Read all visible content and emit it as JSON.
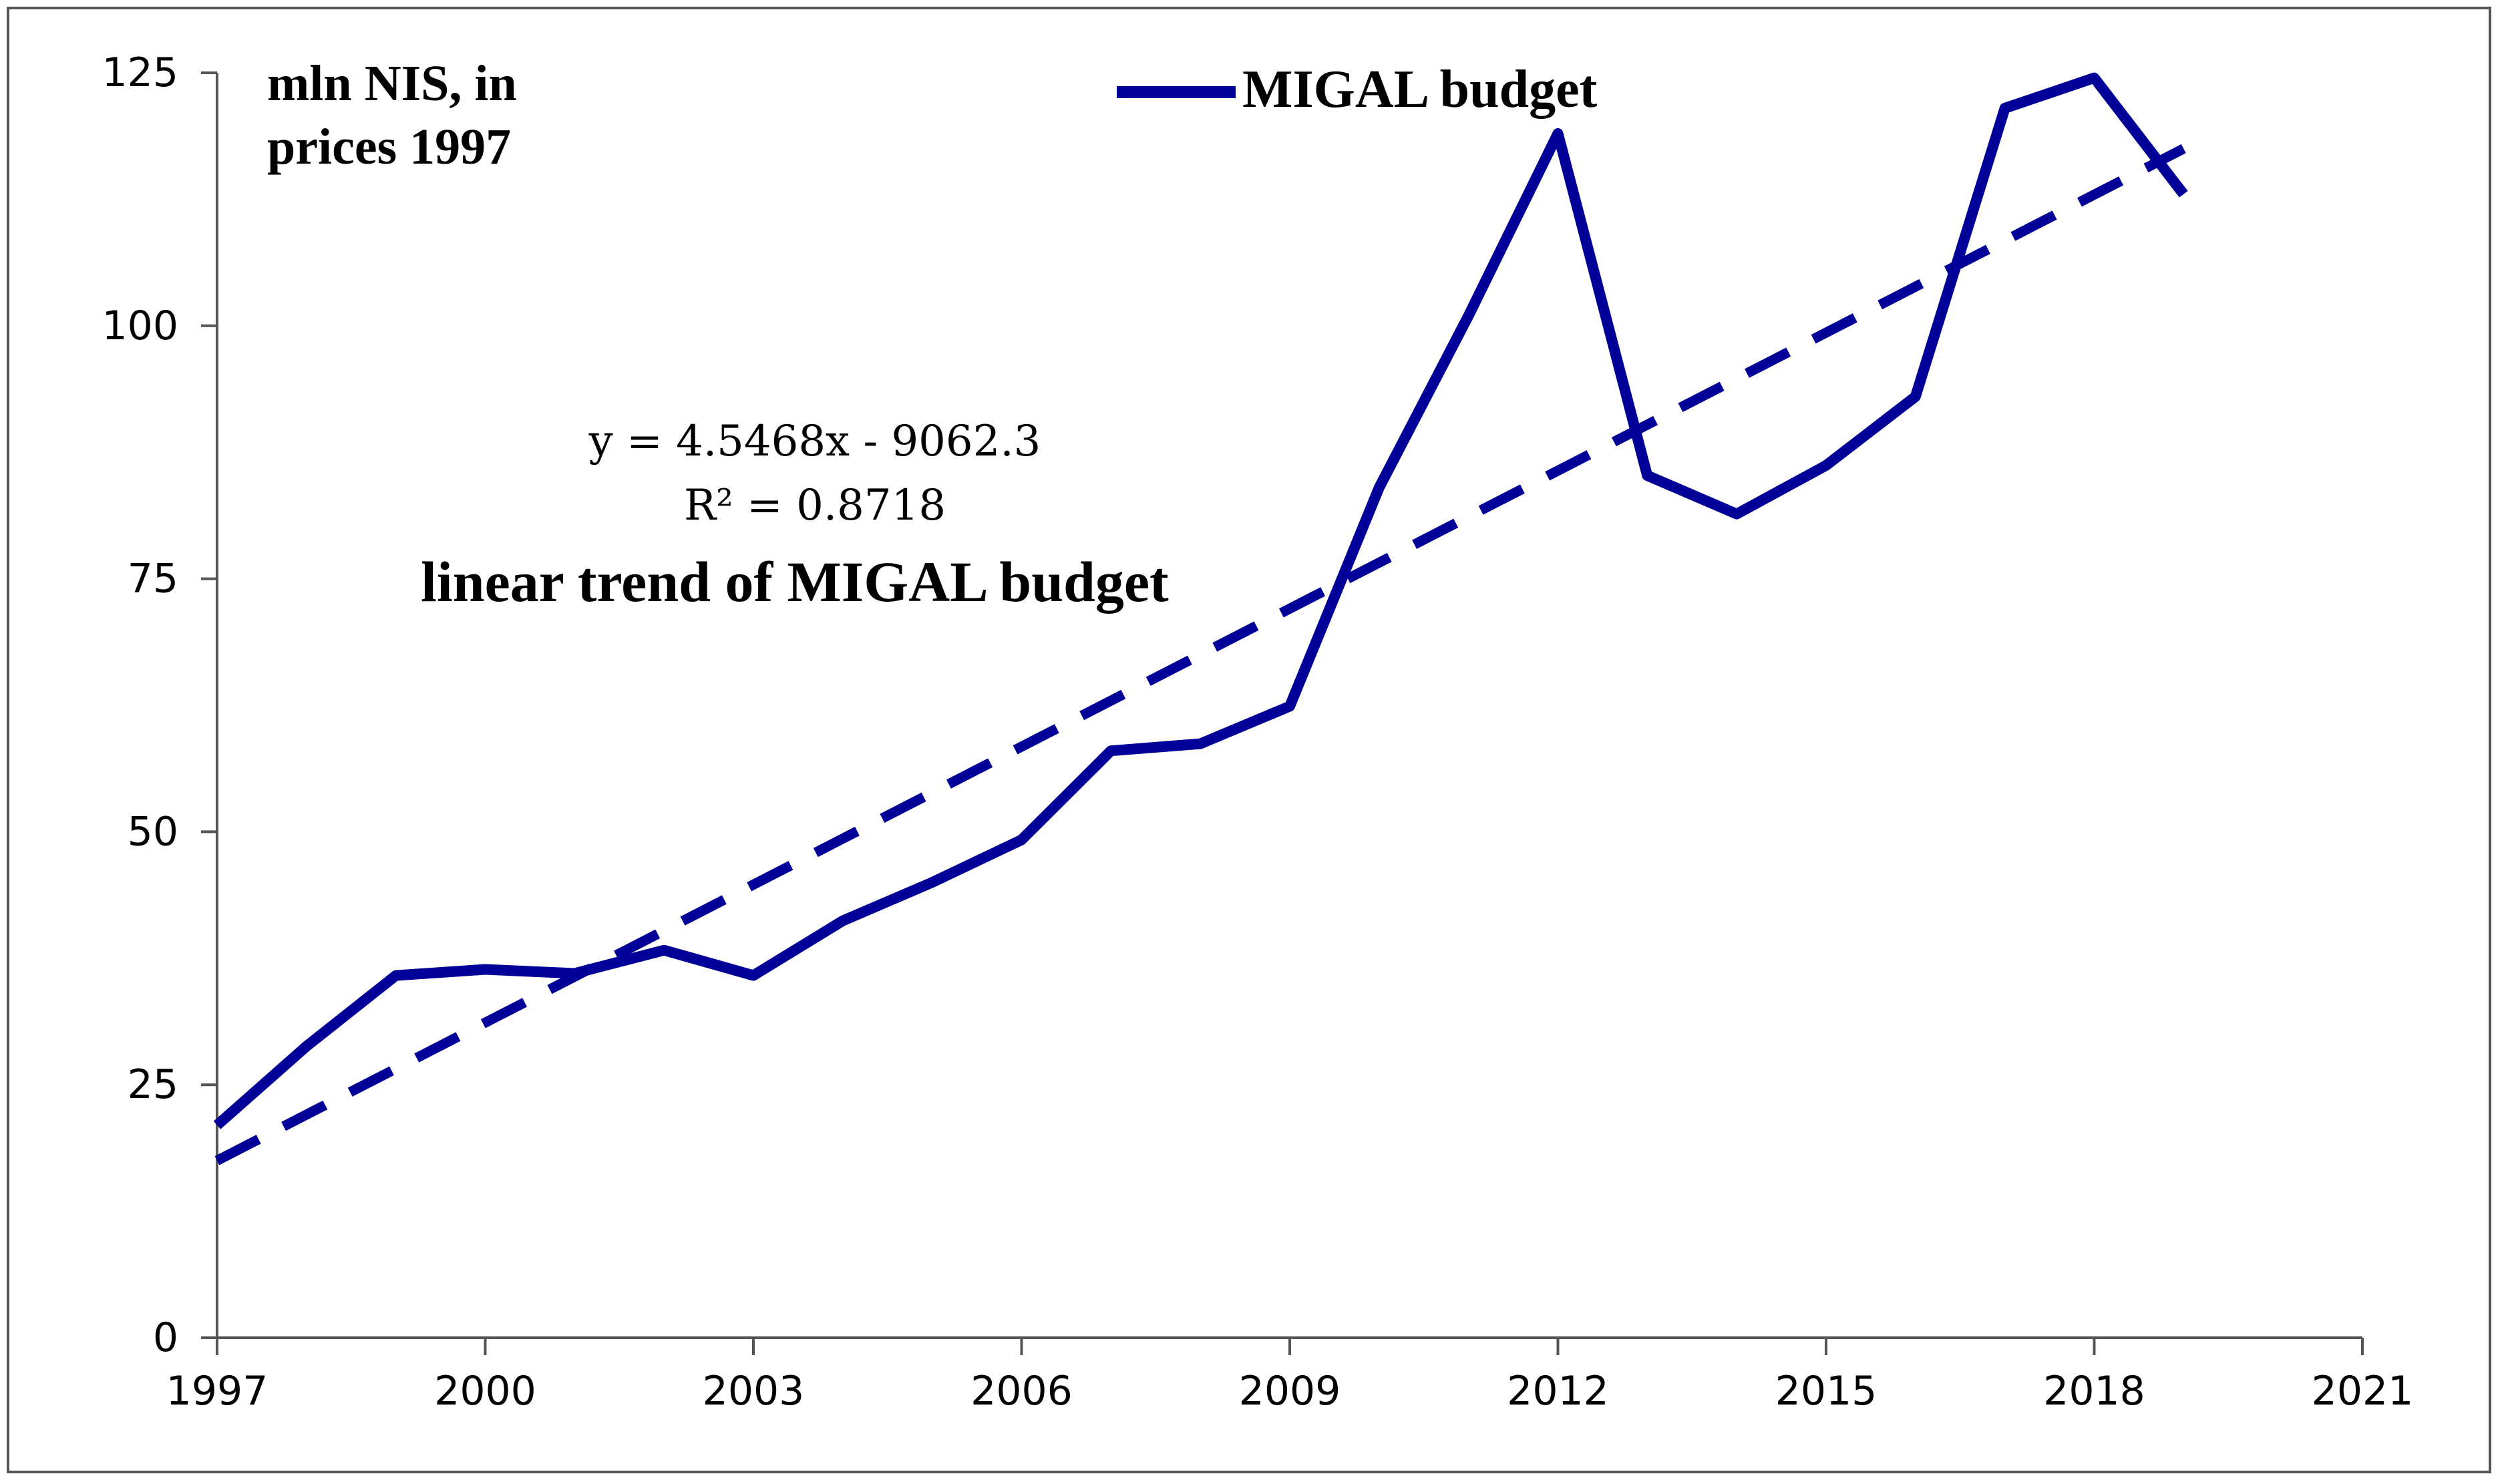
{
  "chart_data": {
    "type": "line",
    "title": "",
    "ylabel": "mln NIS, in prices 1997",
    "ylabel_lines": [
      "mln NIS, in",
      "prices 1997"
    ],
    "xlabel": "",
    "xlim": [
      1997,
      2021
    ],
    "ylim": [
      0,
      125
    ],
    "xticks": [
      1997,
      2000,
      2003,
      2006,
      2009,
      2012,
      2015,
      2018,
      2021
    ],
    "yticks": [
      0,
      25,
      50,
      75,
      100,
      125
    ],
    "grid": false,
    "legend_position": "top-center",
    "series": [
      {
        "name": "MIGAL budget",
        "style": "solid",
        "color": "#000099",
        "x": [
          1997,
          1998,
          1999,
          2000,
          2001,
          2002,
          2003,
          2004,
          2005,
          2006,
          2007,
          2008,
          2009,
          2010,
          2011,
          2012,
          2013,
          2014,
          2015,
          2016,
          2017,
          2018,
          2019
        ],
        "values": [
          21,
          28.8,
          35.8,
          36.4,
          36,
          38.3,
          35.8,
          41.2,
          45,
          49.2,
          58,
          58.7,
          62.4,
          84,
          101,
          119,
          85.2,
          81.4,
          86.2,
          93,
          121.5,
          124.5,
          113
        ]
      },
      {
        "name": "linear trend of MIGAL budget",
        "style": "dashed",
        "color": "#000099",
        "slope": 4.5468,
        "intercept": -9062.3,
        "x": [
          1997,
          2019
        ],
        "values": [
          17.5,
          117.5
        ]
      }
    ],
    "annotations": {
      "equation": "y = 4.5468x  - 9062.3",
      "r_squared": "R² = 0.8718",
      "trend_label": "linear trend of MIGAL budget"
    }
  }
}
